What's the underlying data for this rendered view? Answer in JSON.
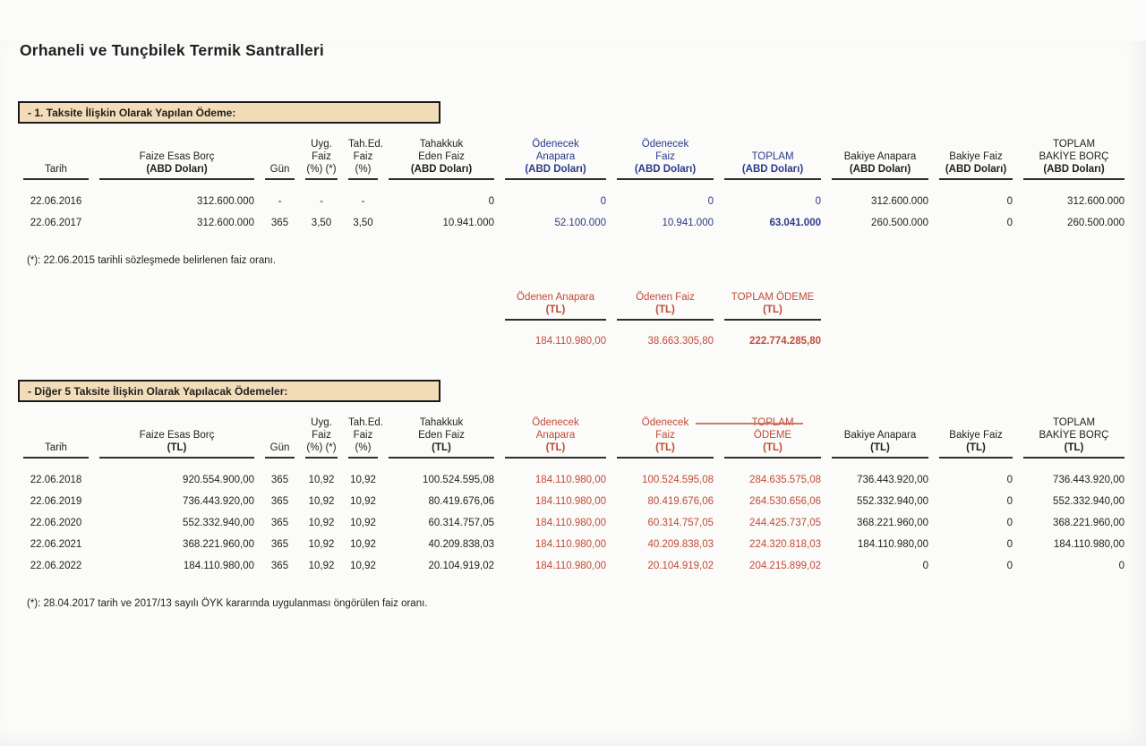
{
  "document": {
    "title": "Orhaneli ve Tunçbilek Termik Santralleri"
  },
  "colors": {
    "blue": "#2b3a8c",
    "red": "#c14b38",
    "section_fill": "#f2ddb8",
    "section_border": "#1a1a1a"
  },
  "section1": {
    "heading": "- 1. Taksite İlişkin Olarak Yapılan Ödeme:",
    "footnote": "(*): 22.06.2015 tarihli sözleşmede belirlenen faiz oranı.",
    "table": {
      "columns": [
        {
          "id": "tarih",
          "lines": [
            "Tarih"
          ],
          "align": "center",
          "color": "",
          "bold_last": false
        },
        {
          "id": "faize-esas-borc",
          "lines": [
            "Faize Esas Borç",
            "(ABD Doları)"
          ],
          "align": "right",
          "color": "",
          "bold_last": true
        },
        {
          "id": "gun",
          "lines": [
            "Gün"
          ],
          "align": "center",
          "color": "",
          "bold_last": false
        },
        {
          "id": "uyg-faiz",
          "lines": [
            "Uyg.",
            "Faiz",
            "(%) (*)"
          ],
          "align": "center",
          "color": "",
          "bold_last": false
        },
        {
          "id": "tahed-faiz",
          "lines": [
            "Tah.Ed.",
            "Faiz",
            "(%)"
          ],
          "align": "center",
          "color": "",
          "bold_last": false
        },
        {
          "id": "tahakkuk-eden-faiz",
          "lines": [
            "Tahakkuk",
            "Eden Faiz",
            "(ABD Doları)"
          ],
          "align": "right",
          "color": "",
          "bold_last": true
        },
        {
          "id": "odenecek-anapara",
          "lines": [
            "Ödenecek",
            "Anapara",
            "(ABD Doları)"
          ],
          "align": "right",
          "color": "blue",
          "bold_last": true
        },
        {
          "id": "odenecek-faiz",
          "lines": [
            "Ödenecek",
            "Faiz",
            "(ABD Doları)"
          ],
          "align": "right",
          "color": "blue",
          "bold_last": true
        },
        {
          "id": "toplam",
          "lines": [
            "TOPLAM",
            "(ABD Doları)"
          ],
          "align": "right",
          "color": "blue",
          "bold_last": true
        },
        {
          "id": "bakiye-anapara",
          "lines": [
            "Bakiye Anapara",
            "(ABD Doları)"
          ],
          "align": "right",
          "color": "",
          "bold_last": true
        },
        {
          "id": "bakiye-faiz",
          "lines": [
            "Bakiye Faiz",
            "(ABD Doları)"
          ],
          "align": "right",
          "color": "",
          "bold_last": true
        },
        {
          "id": "toplam-bakiye-borc",
          "lines": [
            "TOPLAM",
            "BAKİYE BORÇ",
            "(ABD Doları)"
          ],
          "align": "right",
          "color": "",
          "bold_last": true
        }
      ],
      "rows": [
        [
          "22.06.2016",
          "312.600.000",
          "-",
          "-",
          "-",
          "0",
          "0",
          "0",
          "0",
          "312.600.000",
          "0",
          "312.600.000"
        ],
        [
          "22.06.2017",
          "312.600.000",
          "365",
          "3,50",
          "3,50",
          "10.941.000",
          "52.100.000",
          "10.941.000",
          "63.041.000",
          "260.500.000",
          "0",
          "260.500.000"
        ]
      ],
      "bold_cells": [
        [
          1,
          8
        ]
      ]
    }
  },
  "paid_summary": {
    "columns": [
      {
        "id": "odenen-anapara",
        "lines": [
          "Ödenen Anapara",
          "(TL)"
        ]
      },
      {
        "id": "odenen-faiz",
        "lines": [
          "Ödenen Faiz",
          "(TL)"
        ]
      },
      {
        "id": "toplam-odeme",
        "lines": [
          "TOPLAM ÖDEME",
          "(TL)"
        ]
      }
    ],
    "values": [
      "184.110.980,00",
      "38.663.305,80",
      "222.774.285,80"
    ],
    "bold_values": [
      2
    ]
  },
  "section2": {
    "heading": "- Diğer 5 Taksite İlişkin Olarak Yapılacak Ödemeler:",
    "footnote": "(*): 28.04.2017 tarih ve 2017/13 sayılı ÖYK kararında uygulanması öngörülen faiz oranı.",
    "table": {
      "columns": [
        {
          "id": "tarih",
          "lines": [
            "Tarih"
          ],
          "align": "center",
          "color": "",
          "bold_last": false
        },
        {
          "id": "faize-esas-borc",
          "lines": [
            "Faize Esas Borç",
            "(TL)"
          ],
          "align": "right",
          "color": "",
          "bold_last": true
        },
        {
          "id": "gun",
          "lines": [
            "Gün"
          ],
          "align": "center",
          "color": "",
          "bold_last": false
        },
        {
          "id": "uyg-faiz",
          "lines": [
            "Uyg.",
            "Faiz",
            "(%) (*)"
          ],
          "align": "center",
          "color": "",
          "bold_last": false
        },
        {
          "id": "tahed-faiz",
          "lines": [
            "Tah.Ed.",
            "Faiz",
            "(%)"
          ],
          "align": "center",
          "color": "",
          "bold_last": false
        },
        {
          "id": "tahakkuk-eden-faiz",
          "lines": [
            "Tahakkuk",
            "Eden Faiz",
            "(TL)"
          ],
          "align": "right",
          "color": "",
          "bold_last": true
        },
        {
          "id": "odenecek-anapara",
          "lines": [
            "Ödenecek",
            "Anapara",
            "(TL)"
          ],
          "align": "right",
          "color": "red",
          "bold_last": true
        },
        {
          "id": "odenecek-faiz",
          "lines": [
            "Ödenecek",
            "Faiz",
            "(TL)"
          ],
          "align": "right",
          "color": "red",
          "bold_last": true
        },
        {
          "id": "toplam-odeme",
          "lines": [
            "TOPLAM",
            "ÖDEME",
            "(TL)"
          ],
          "align": "right",
          "color": "red",
          "bold_last": true
        },
        {
          "id": "bakiye-anapara",
          "lines": [
            "Bakiye Anapara",
            "(TL)"
          ],
          "align": "right",
          "color": "",
          "bold_last": true
        },
        {
          "id": "bakiye-faiz",
          "lines": [
            "Bakiye Faiz",
            "(TL)"
          ],
          "align": "right",
          "color": "",
          "bold_last": true
        },
        {
          "id": "toplam-bakiye-borc",
          "lines": [
            "TOPLAM",
            "BAKİYE BORÇ",
            "(TL)"
          ],
          "align": "right",
          "color": "",
          "bold_last": true
        }
      ],
      "rows": [
        [
          "22.06.2018",
          "920.554.900,00",
          "365",
          "10,92",
          "10,92",
          "100.524.595,08",
          "184.110.980,00",
          "100.524.595,08",
          "284.635.575,08",
          "736.443.920,00",
          "0",
          "736.443.920,00"
        ],
        [
          "22.06.2019",
          "736.443.920,00",
          "365",
          "10,92",
          "10,92",
          "80.419.676,06",
          "184.110.980,00",
          "80.419.676,06",
          "264.530.656,06",
          "552.332.940,00",
          "0",
          "552.332.940,00"
        ],
        [
          "22.06.2020",
          "552.332.940,00",
          "365",
          "10,92",
          "10,92",
          "60.314.757,05",
          "184.110.980,00",
          "60.314.757,05",
          "244.425.737,05",
          "368.221.960,00",
          "0",
          "368.221.960,00"
        ],
        [
          "22.06.2021",
          "368.221.960,00",
          "365",
          "10,92",
          "10,92",
          "40.209.838,03",
          "184.110.980,00",
          "40.209.838,03",
          "224.320.818,03",
          "184.110.980,00",
          "0",
          "184.110.980,00"
        ],
        [
          "22.06.2022",
          "184.110.980,00",
          "365",
          "10,92",
          "10,92",
          "20.104.919,02",
          "184.110.980,00",
          "20.104.919,02",
          "204.215.899,02",
          "0",
          "0",
          "0"
        ]
      ],
      "bold_cells": []
    }
  }
}
